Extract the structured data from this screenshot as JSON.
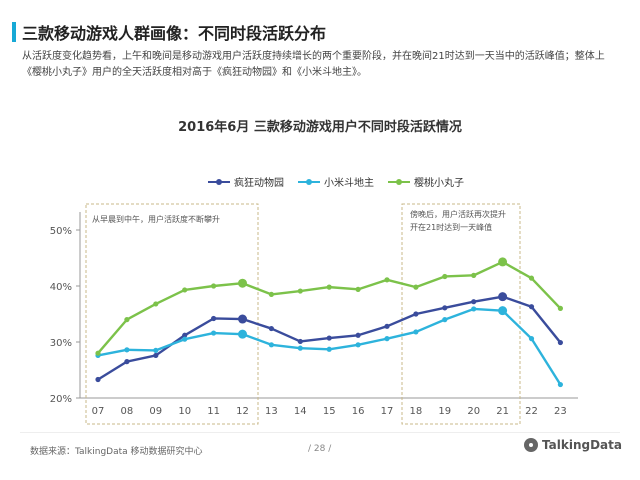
{
  "header": {
    "title": "三款移动游戏人群画像：不同时段活跃分布",
    "description": "从活跃度变化趋势看，上午和晚间是移动游戏用户活跃度持续增长的两个重要阶段，并在晚间21时达到一天当中的活跃峰值；整体上《樱桃小丸子》用户的全天活跃度相对高于《疯狂动物园》和《小米斗地主》。"
  },
  "colors": {
    "accent": "#17a9d6",
    "series_blue": "#3a4c9c",
    "series_cyan": "#2db3dc",
    "series_green": "#7cc24a",
    "dash_box": "#c9b98a"
  },
  "chart_data": {
    "type": "line",
    "title": "2016年6月 三款移动游戏用户不同时段活跃情况",
    "categories": [
      "07",
      "08",
      "09",
      "10",
      "11",
      "12",
      "13",
      "14",
      "15",
      "16",
      "17",
      "18",
      "19",
      "20",
      "21",
      "22",
      "23"
    ],
    "ylim": [
      20,
      50
    ],
    "yticks": [
      "20%",
      "30%",
      "40%",
      "50%"
    ],
    "series": [
      {
        "name": "疯狂动物园",
        "color": "#3a4c9c",
        "values": [
          23.3,
          26.5,
          27.6,
          31.2,
          34.2,
          34.1,
          32.4,
          30.1,
          30.7,
          31.2,
          32.8,
          35.0,
          36.1,
          37.2,
          38.1,
          36.3,
          29.9
        ]
      },
      {
        "name": "小米斗地主",
        "color": "#2db3dc",
        "values": [
          27.6,
          28.6,
          28.5,
          30.5,
          31.6,
          31.4,
          29.5,
          28.9,
          28.7,
          29.5,
          30.6,
          31.8,
          34.0,
          35.9,
          35.6,
          30.6,
          22.4
        ]
      },
      {
        "name": "樱桃小丸子",
        "color": "#7cc24a",
        "values": [
          28.0,
          34.0,
          36.8,
          39.3,
          40.0,
          40.5,
          38.5,
          39.1,
          39.8,
          39.4,
          41.1,
          39.8,
          41.7,
          41.9,
          44.3,
          41.4,
          36.0
        ]
      }
    ],
    "highlight_index": [
      5,
      14
    ],
    "annotations": [
      {
        "text": "从早晨到中午，用户活跃度不断攀升",
        "from": "07",
        "to": "12"
      },
      {
        "text": "傍晚后，用户活跃再次提升开在21时达到一天峰值",
        "from": "18",
        "to": "21"
      }
    ]
  },
  "footer": {
    "source": "数据来源：TalkingData  移动数据研究中心",
    "page": "/ 28 /",
    "brand": "TalkingData"
  }
}
